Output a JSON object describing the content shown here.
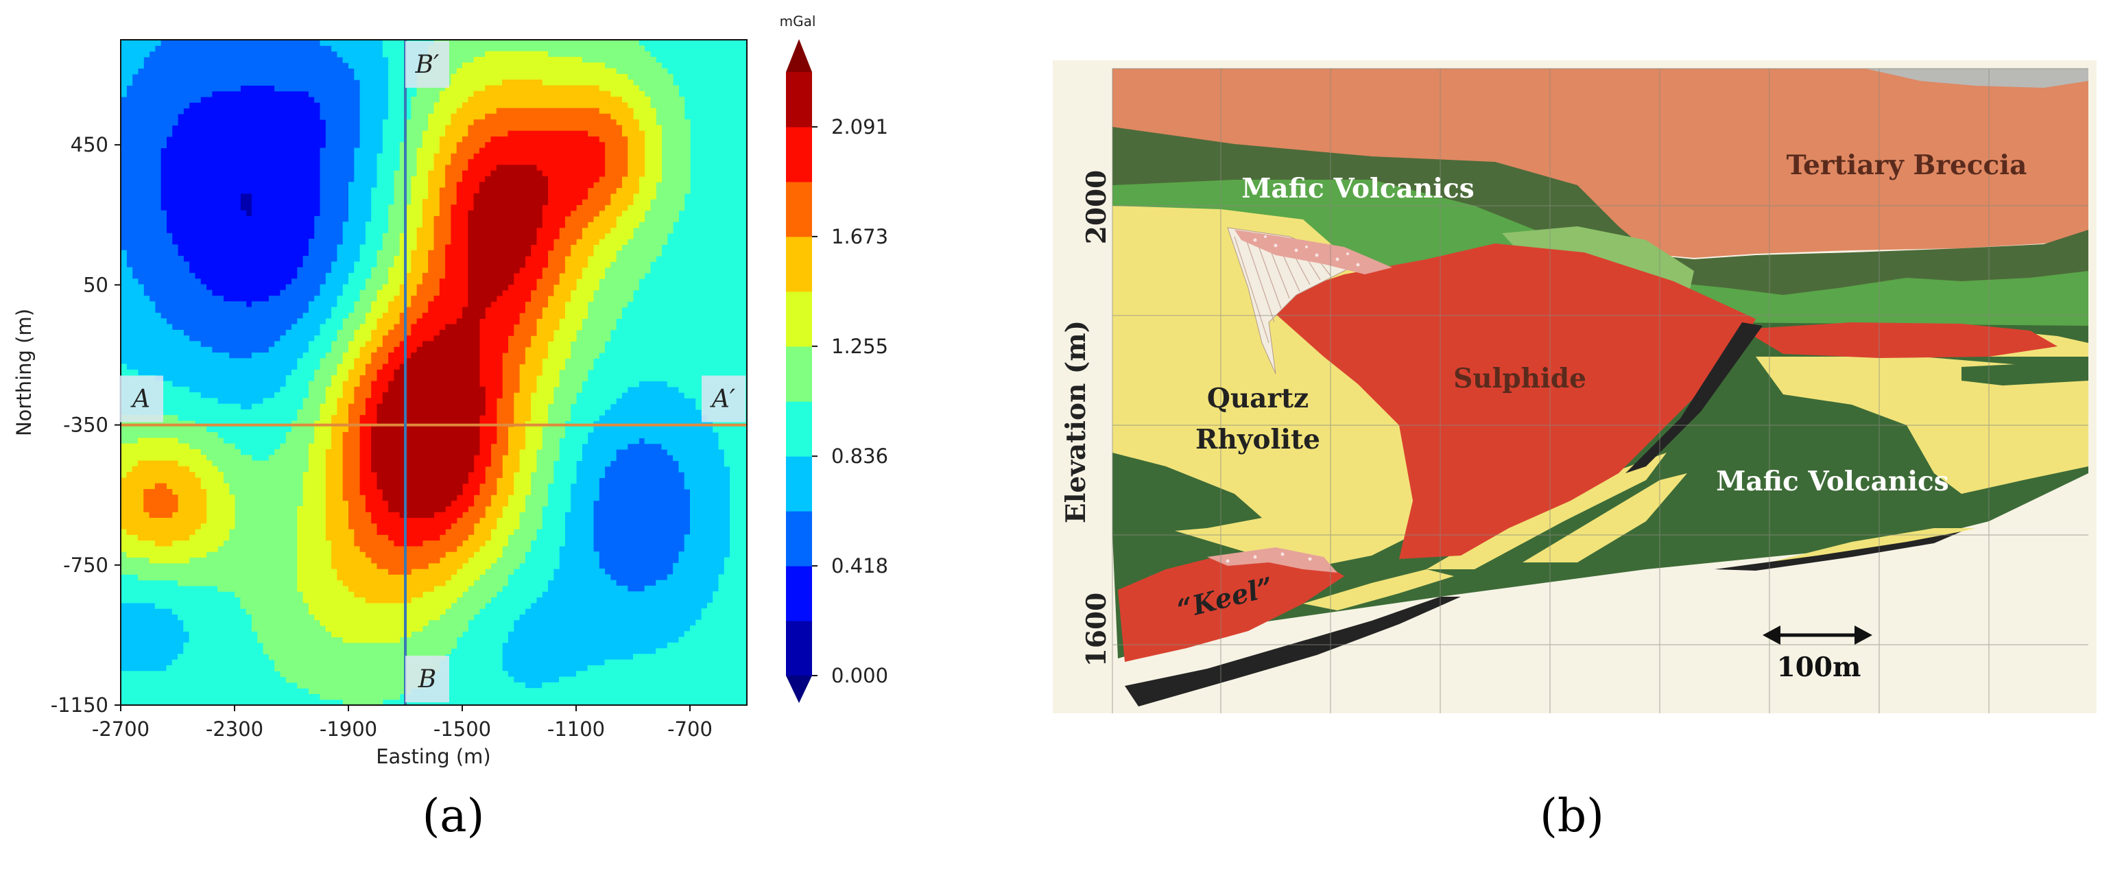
{
  "chart_data": [
    {
      "type": "heatmap",
      "panel_label": "(a)",
      "subtype": "filled-contour",
      "xlabel": "Easting (m)",
      "ylabel": "Northing (m)",
      "xlim": [
        -2700,
        -500
      ],
      "ylim": [
        -1150,
        750
      ],
      "x_ticks": [
        -2700,
        -2300,
        -1900,
        -1500,
        -1100,
        -700
      ],
      "y_ticks": [
        -1150,
        -750,
        -350,
        50,
        450
      ],
      "colorbar": {
        "unit": "mGal",
        "min": 0.0,
        "max": 2.3,
        "levels": [
          0.0,
          0.209,
          0.418,
          0.627,
          0.836,
          1.045,
          1.255,
          1.464,
          1.673,
          1.882,
          2.091,
          2.3
        ],
        "tick_values": [
          0.0,
          0.418,
          0.836,
          1.255,
          1.673,
          2.091
        ],
        "tick_labels": [
          "0.000",
          "0.418",
          "0.836",
          "1.255",
          "1.673",
          "2.091"
        ]
      },
      "anomalies": [
        {
          "x": -1640,
          "y": -380,
          "amp": 1.55,
          "sx": 230,
          "sy": 270
        },
        {
          "x": -1360,
          "y": 250,
          "amp": 1.25,
          "sx": 210,
          "sy": 280
        },
        {
          "x": -1000,
          "y": 430,
          "amp": 0.7,
          "sx": 150,
          "sy": 160
        },
        {
          "x": -2560,
          "y": -570,
          "amp": 0.8,
          "sx": 180,
          "sy": 150
        },
        {
          "x": -2400,
          "y": 380,
          "amp": -0.55,
          "sx": 320,
          "sy": 380
        },
        {
          "x": -2100,
          "y": 150,
          "amp": -0.35,
          "sx": 250,
          "sy": 300
        },
        {
          "x": -880,
          "y": -600,
          "amp": -0.5,
          "sx": 190,
          "sy": 230
        },
        {
          "x": -1950,
          "y": 600,
          "amp": -0.2,
          "sx": 160,
          "sy": 150
        },
        {
          "x": -1900,
          "y": -820,
          "amp": 0.3,
          "sx": 240,
          "sy": 200
        },
        {
          "x": -1300,
          "y": -950,
          "amp": -0.2,
          "sx": 180,
          "sy": 150
        },
        {
          "x": -2620,
          "y": -900,
          "amp": -0.25,
          "sx": 170,
          "sy": 130
        }
      ],
      "background_level": 0.95,
      "profiles": [
        {
          "name": "A-A′",
          "start_label": "A",
          "end_label": "A′",
          "orientation": "horizontal",
          "northing": -350,
          "color": "#e08a3c"
        },
        {
          "name": "B-B′",
          "start_label": "B",
          "end_label": "B′",
          "orientation": "vertical",
          "easting": -1700,
          "color": "#3a78b5"
        }
      ]
    },
    {
      "type": "diagram",
      "panel_label": "(b)",
      "subtype": "geological-cross-section",
      "ylabel": "Elevation (m)",
      "y_ticks": [
        1600,
        2000
      ],
      "labels": {
        "tertiary_breccia": "Tertiary Breccia",
        "mafic_volcanics_top": "Mafic Volcanics",
        "sulphide": "Sulphide",
        "quartz_rhyolite": "Quartz Rhyolite",
        "mafic_volcanics_bottom": "Mafic Volcanics",
        "keel": "“Keel”",
        "scale_bar": "100m"
      },
      "colors": {
        "tertiary_breccia": "#df8862",
        "mafic_volcanics_dark": "#3d6b37",
        "mafic_volcanics_green": "#5aa64a",
        "sulphide": "#d9412f",
        "quartz_rhyolite": "#f1e37a",
        "basement": "#242424",
        "background": "#f6f3e5"
      }
    }
  ]
}
